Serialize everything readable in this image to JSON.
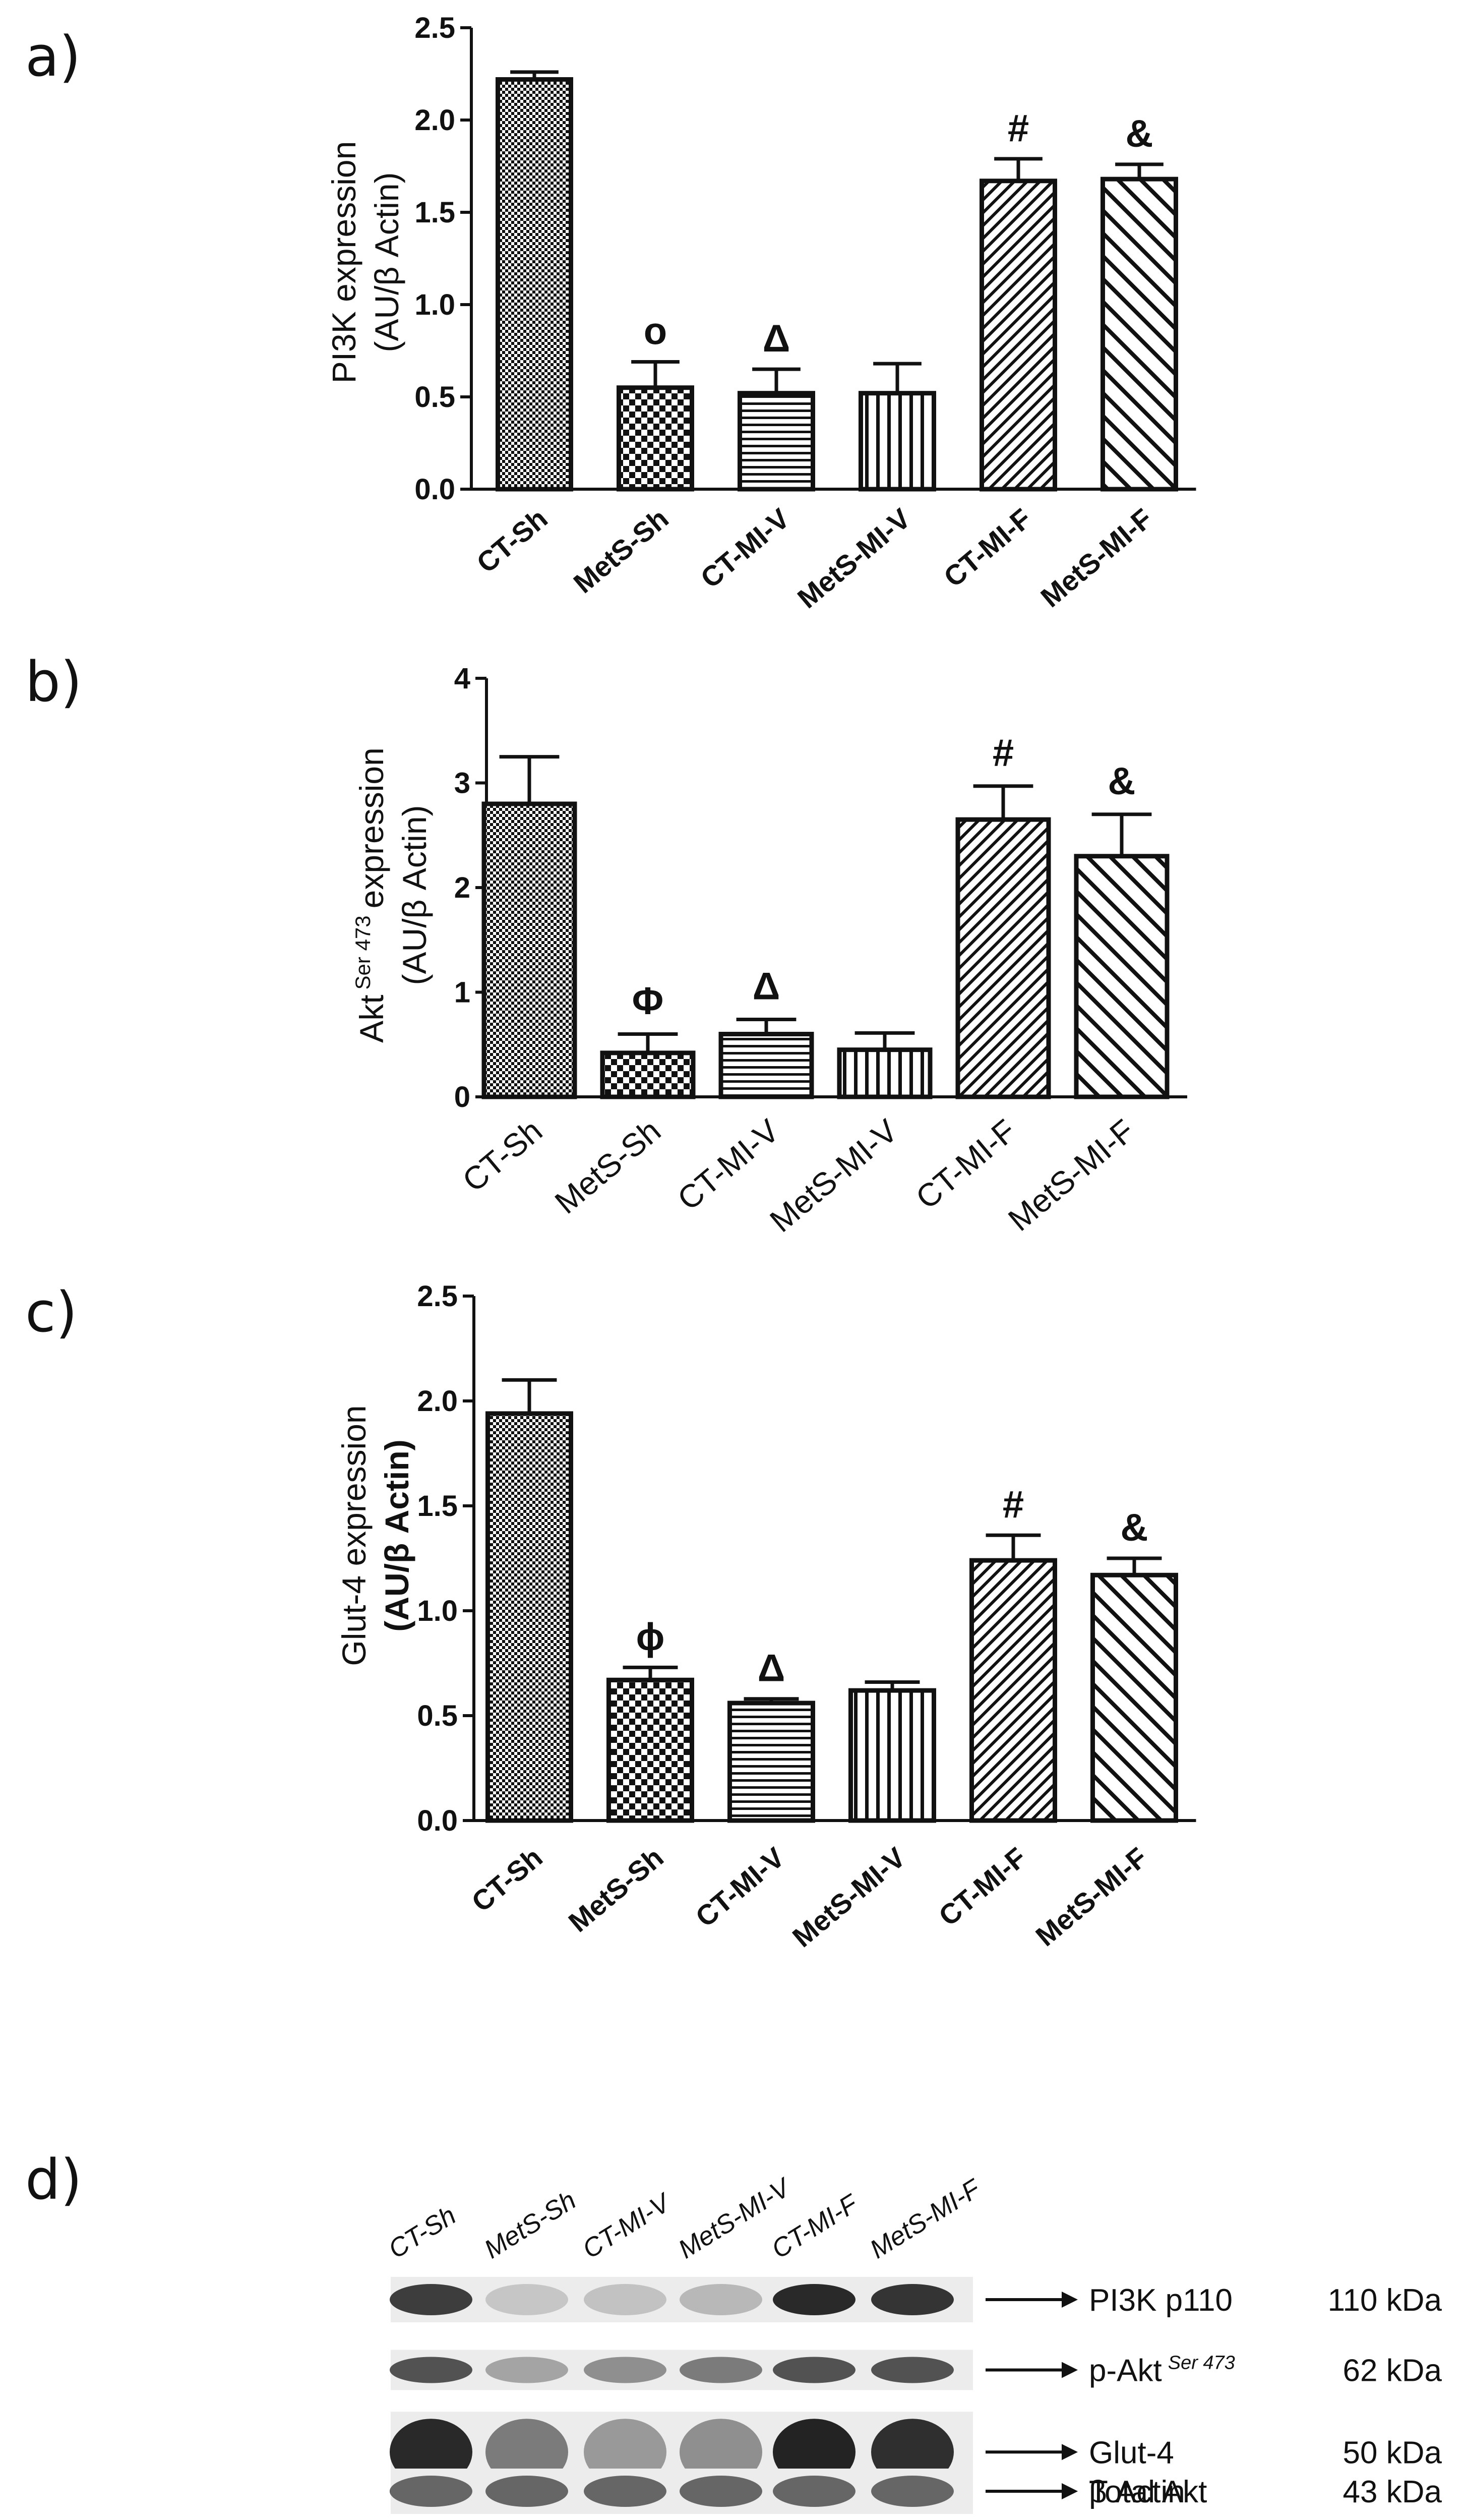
{
  "chart_data": [
    {
      "type": "bar",
      "panel": "a)",
      "categories": [
        "CT-Sh",
        "MetS-Sh",
        "CT-MI-V",
        "MetS-MI-V",
        "CT-MI-F",
        "MetS-MI-F"
      ],
      "values": [
        2.22,
        0.55,
        0.52,
        0.52,
        1.67,
        1.68
      ],
      "errors": [
        0.04,
        0.14,
        0.13,
        0.16,
        0.12,
        0.08
      ],
      "significance": [
        "",
        "o",
        "Δ",
        "",
        "#",
        "&"
      ],
      "ylabel_line1": "PI3K expression",
      "ylabel_line2": "(AU/β Actin)",
      "ylim": [
        0,
        2.5
      ],
      "yticks": [
        "0.0",
        "0.5",
        "1.0",
        "1.5",
        "2.0",
        "2.5"
      ],
      "grid": false
    },
    {
      "type": "bar",
      "panel": "b)",
      "categories": [
        "CT-Sh",
        "MetS-Sh",
        "CT-MI-V",
        "MetS-MI-V",
        "CT-MI-F",
        "MetS-MI-F"
      ],
      "values": [
        2.8,
        0.42,
        0.6,
        0.45,
        2.65,
        2.3
      ],
      "errors": [
        0.45,
        0.18,
        0.14,
        0.16,
        0.32,
        0.4
      ],
      "significance": [
        "",
        "Φ",
        "Δ",
        "",
        "#",
        "&"
      ],
      "ylabel_prefix": "Akt",
      "ylabel_sup": "Ser 473",
      "ylabel_suffix": "expression",
      "ylabel_line2": "(AU/β Actin)",
      "ylim": [
        0,
        4
      ],
      "yticks": [
        "0",
        "1",
        "2",
        "3",
        "4"
      ],
      "grid": false
    },
    {
      "type": "bar",
      "panel": "c)",
      "categories": [
        "CT-Sh",
        "MetS-Sh",
        "CT-MI-V",
        "MetS-MI-V",
        "CT-MI-F",
        "MetS-MI-F"
      ],
      "values": [
        1.94,
        0.67,
        0.56,
        0.62,
        1.24,
        1.17
      ],
      "errors": [
        0.16,
        0.06,
        0.02,
        0.04,
        0.12,
        0.08
      ],
      "significance": [
        "",
        "ϕ",
        "Δ",
        "",
        "#",
        "&"
      ],
      "ylabel_line1": "Glut-4 expression",
      "ylabel_line2": "(AU/β Actin)",
      "ylim": [
        0,
        2.5
      ],
      "yticks": [
        "0.0",
        "0.5",
        "1.0",
        "1.5",
        "2.0",
        "2.5"
      ],
      "grid": false
    }
  ],
  "blot": {
    "panel": "d)",
    "lanes": [
      "CT-Sh",
      "MetS-Sh",
      "CT-MI-V",
      "MetS-MI-V",
      "CT-MI-F",
      "MetS-MI-F"
    ],
    "rows": [
      {
        "name": "PI3K p110",
        "sup": "",
        "kda": "110 kDa",
        "intensity": [
          0.85,
          0.18,
          0.2,
          0.25,
          0.95,
          0.9
        ]
      },
      {
        "name": "p-Akt",
        "sup": "Ser 473",
        "kda": "62 kDa",
        "intensity": [
          0.75,
          0.35,
          0.45,
          0.55,
          0.75,
          0.75
        ]
      },
      {
        "name": "Glut-4",
        "sup": "",
        "kda": "50 kDa",
        "intensity": [
          0.95,
          0.55,
          0.4,
          0.45,
          0.98,
          0.92
        ]
      },
      {
        "name": "Total Akt",
        "sup": "",
        "kda": "",
        "intensity": [
          0.75,
          0.75,
          0.75,
          0.75,
          0.62,
          0.65
        ]
      },
      {
        "name": "β Actin",
        "sup": "",
        "kda": "43 kDa",
        "intensity": [
          0.65,
          0.65,
          0.65,
          0.65,
          0.65,
          0.65
        ]
      }
    ]
  }
}
